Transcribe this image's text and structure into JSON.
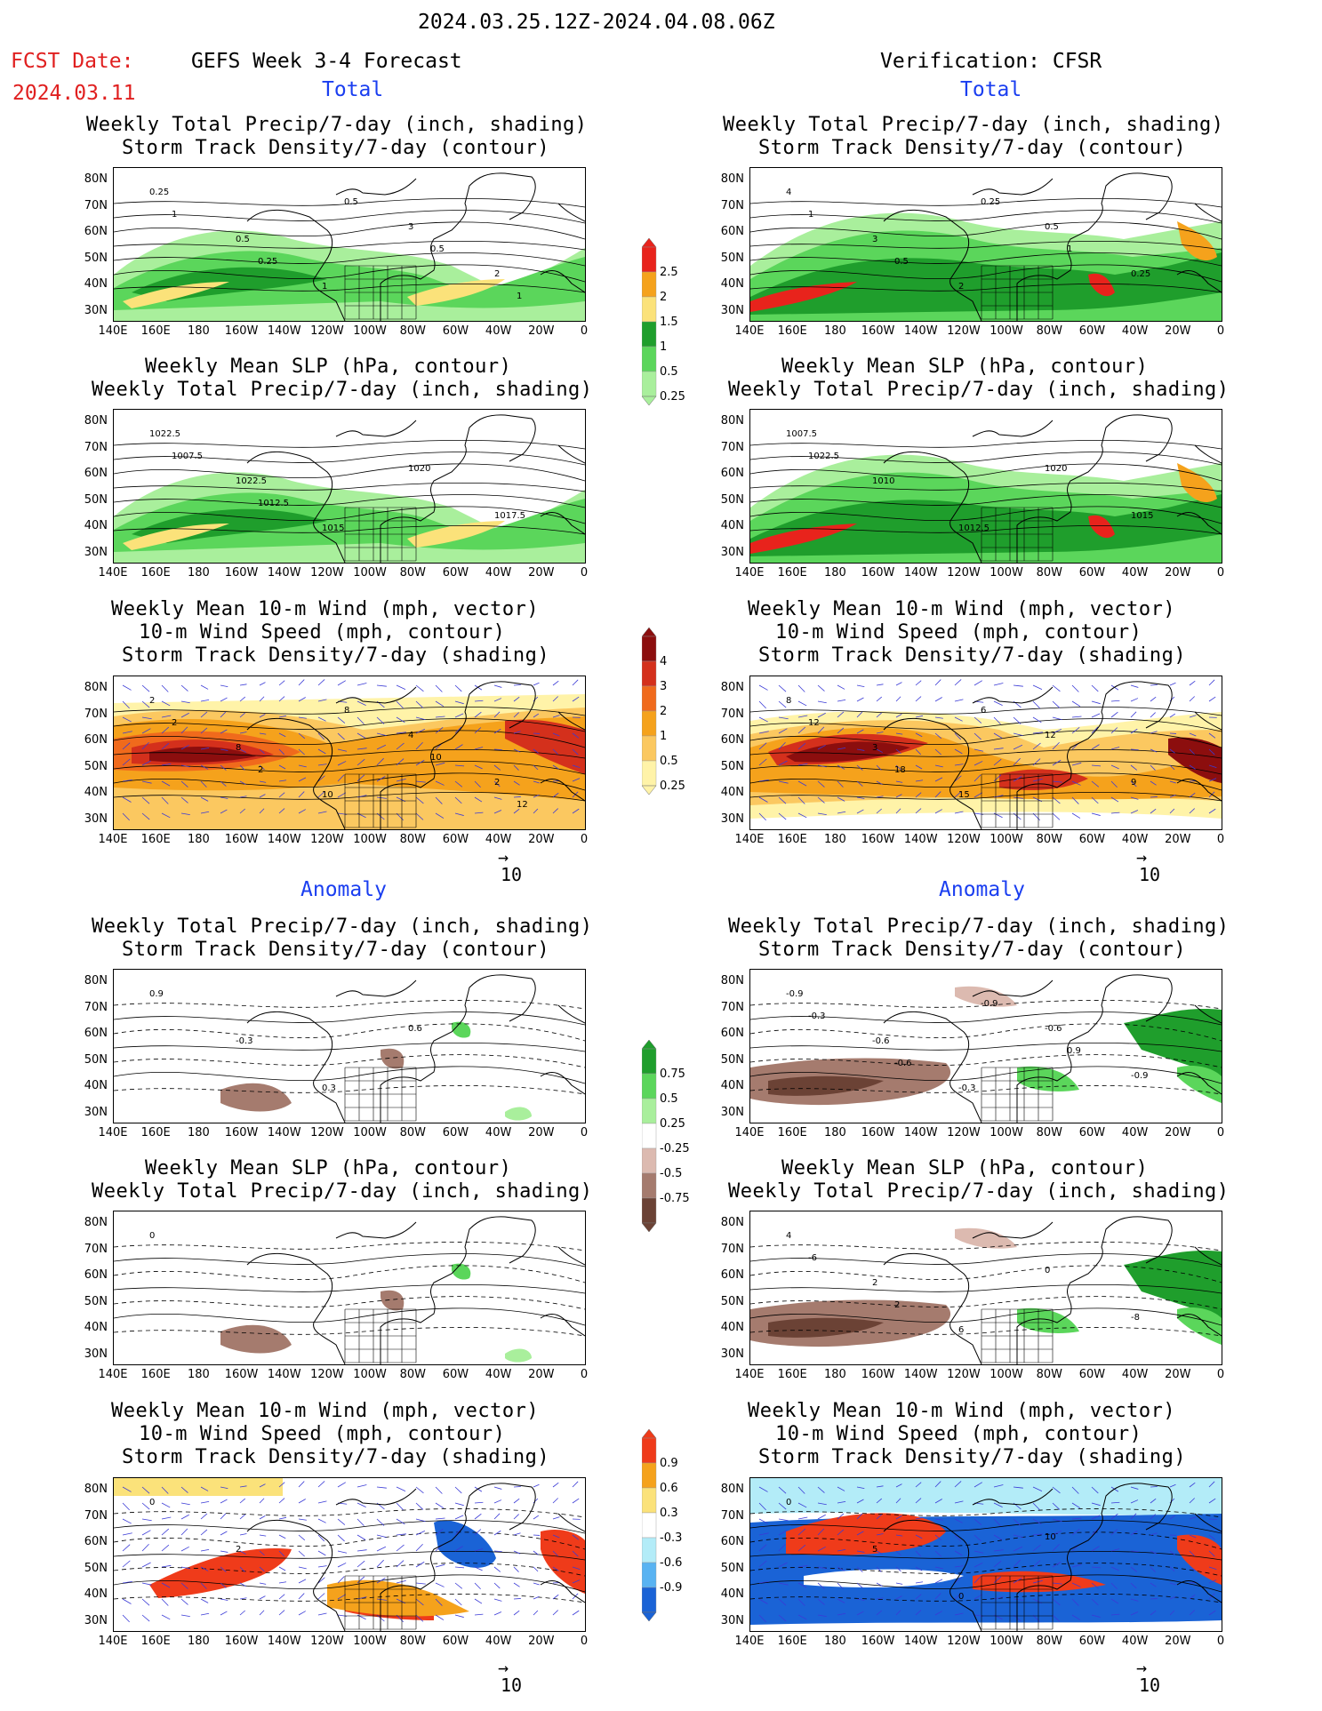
{
  "header": {
    "date_range": "2024.03.25.12Z-2024.04.08.06Z",
    "fcst_label": "FCST Date:",
    "fcst_date": "2024.03.11",
    "left_title": "GEFS Week 3-4 Forecast",
    "right_title": "Verification: CFSR",
    "total_label": "Total",
    "anomaly_label": "Anomaly"
  },
  "panel_titles": {
    "precip_storm": [
      "Weekly Total Precip/7-day (inch, shading)",
      "Storm Track Density/7-day (contour)"
    ],
    "slp_precip": [
      "Weekly Mean SLP (hPa, contour)",
      "Weekly Total Precip/7-day (inch, shading)"
    ],
    "wind_storm": [
      "Weekly Mean 10-m Wind (mph, vector)",
      "10-m Wind Speed (mph, contour)",
      "Storm Track Density/7-day (shading)"
    ]
  },
  "axes": {
    "lat_ticks": [
      "80N",
      "70N",
      "60N",
      "50N",
      "40N",
      "30N"
    ],
    "lon_ticks": [
      "140E",
      "160E",
      "180",
      "160W",
      "140W",
      "120W",
      "100W",
      "80W",
      "60W",
      "40W",
      "20W",
      "0"
    ]
  },
  "colorbars": {
    "total_precip": {
      "labels": [
        "2.5",
        "2",
        "1.5",
        "1",
        "0.5",
        "0.25"
      ],
      "colors": [
        "#e8231c",
        "#f5a21c",
        "#fbe27a",
        "#1f9e2c",
        "#5bd65b",
        "#a9ef9c"
      ]
    },
    "total_storm": {
      "labels": [
        "4",
        "3",
        "2",
        "1",
        "0.5",
        "0.25"
      ],
      "colors": [
        "#8c0e0e",
        "#d4301c",
        "#f06a1c",
        "#f5a21c",
        "#fbc860",
        "#fff3a8"
      ]
    },
    "anom_precip": {
      "labels": [
        "0.75",
        "0.5",
        "0.25",
        "-0.25",
        "-0.5",
        "-0.75"
      ],
      "colors": [
        "#1f9e2c",
        "#5bd65b",
        "#a9ef9c",
        "#ffffff",
        "#dcbab0",
        "#a57b6e",
        "#6b4235"
      ]
    },
    "anom_storm": {
      "labels": [
        "0.9",
        "0.6",
        "0.3",
        "-0.3",
        "-0.6",
        "-0.9"
      ],
      "colors": [
        "#ef3b1a",
        "#f5a21c",
        "#fbe27a",
        "#ffffff",
        "#b3ecf8",
        "#59b3f2",
        "#1a63d6"
      ]
    }
  },
  "vector_reference": {
    "arrow": "→",
    "value": "10"
  },
  "contour_labels": {
    "p1": [
      "0.25",
      "0.5",
      "1",
      "3",
      "2",
      "1",
      "0.25",
      "0.5",
      "0.5",
      "1"
    ],
    "p2": [
      "1022.5",
      "1022.5",
      "1015",
      "1020",
      "1017.5",
      "1007.5",
      "1012.5"
    ],
    "p3": [
      "2",
      "8",
      "10",
      "4",
      "2",
      "2",
      "2",
      "8",
      "10",
      "12"
    ],
    "p4": [
      "0.9",
      "-0.3",
      "0.3",
      "0.6"
    ],
    "p5": [
      "0"
    ],
    "p6": [
      "0",
      "2"
    ],
    "q1": [
      "4",
      "3",
      "2",
      "0.5",
      "0.25",
      "1",
      "0.5",
      "0.25",
      "1"
    ],
    "q2": [
      "1007.5",
      "1010",
      "1012.5",
      "1020",
      "1015",
      "1022.5"
    ],
    "q3": [
      "8",
      "3",
      "15",
      "12",
      "9",
      "12",
      "18",
      "6"
    ],
    "q4": [
      "-0.9",
      "-0.6",
      "-0.3",
      "-0.6",
      "-0.9",
      "-0.3",
      "-0.6",
      "-0.9",
      "0.9"
    ],
    "q5": [
      "4",
      "2",
      "6",
      "0",
      "-8",
      "-6",
      "2"
    ],
    "q6": [
      "0",
      "5",
      "0",
      "10"
    ]
  }
}
